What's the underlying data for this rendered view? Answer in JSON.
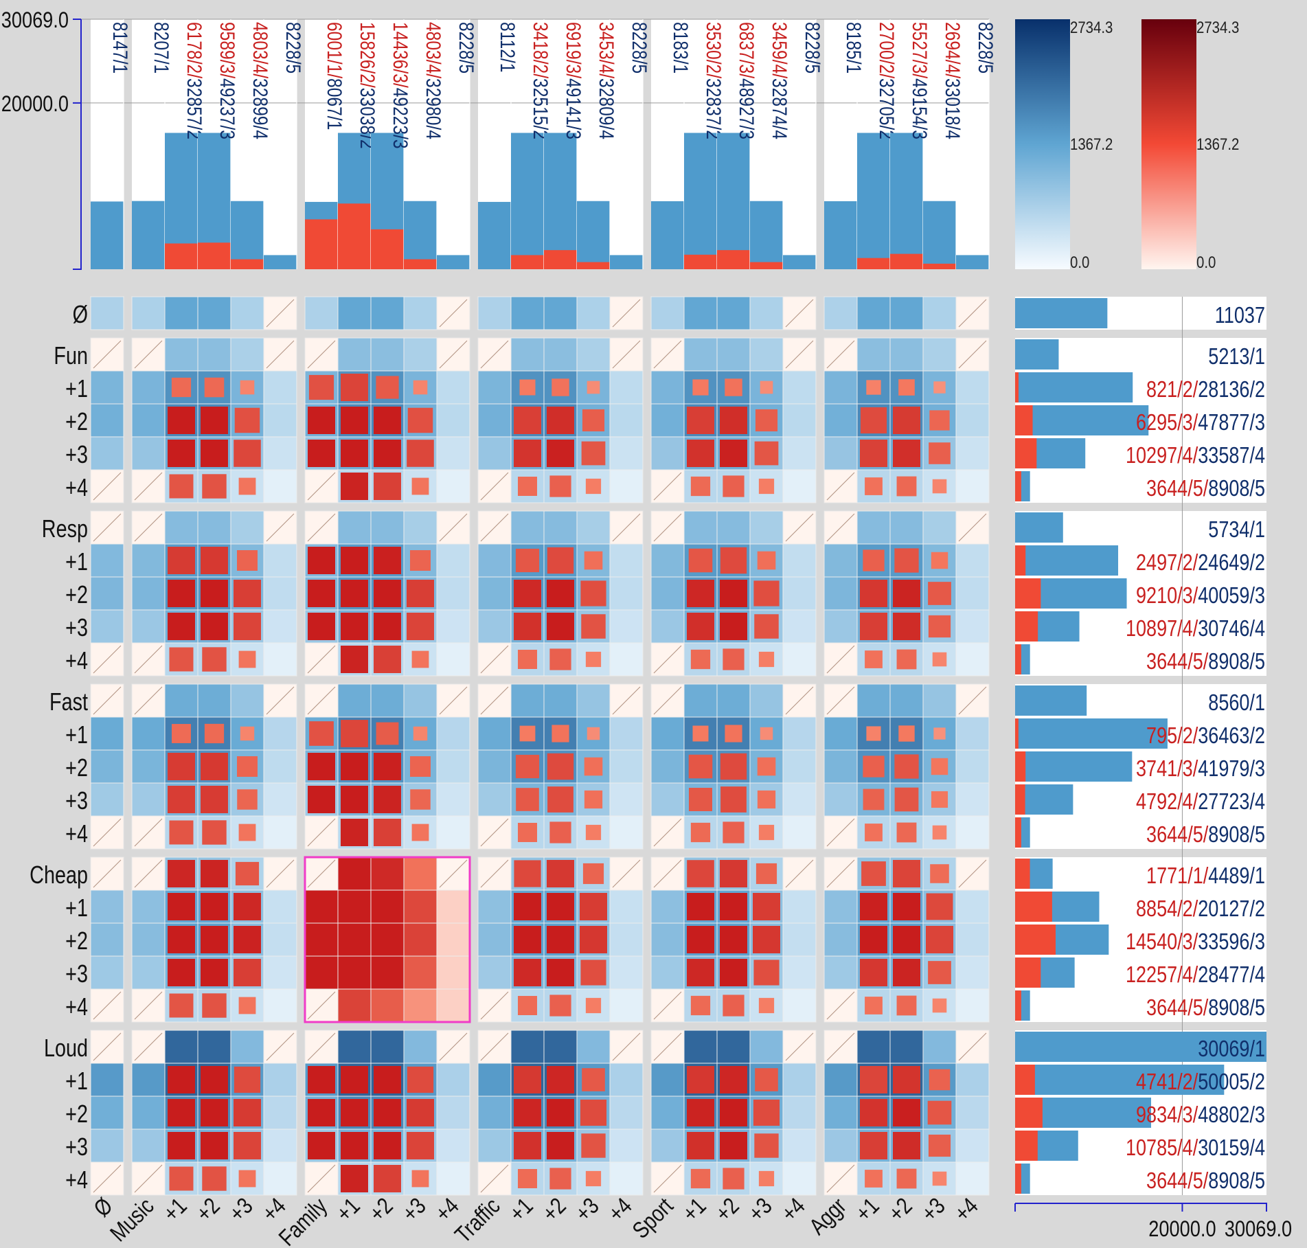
{
  "chart_data": {
    "type": "heatmap",
    "title": "",
    "colors": {
      "blue_dark": "#08306b",
      "blue_mid": "#4a98c9",
      "blue_light": "#f4f9fe",
      "red_dark": "#67000d",
      "red_mid": "#f04d38",
      "red_light": "#fff4ee",
      "bar_blue": "#4f9bcc",
      "bar_red": "#f04a35",
      "text_blue": "#102f6b",
      "text_red": "#c8201f",
      "highlight": "#f03cc8",
      "axis": "#2222cc"
    },
    "axis_max": "30069.0",
    "axis_mid": "20000.0",
    "axis_max_value": 30069,
    "axis_mid_value": 20000,
    "legend_blue": {
      "max": "2734.3",
      "mid": "1367.2",
      "min": "0.0"
    },
    "legend_red": {
      "max": "2734.3",
      "mid": "1367.2",
      "min": "0.0"
    },
    "column_groups": [
      {
        "label": "Ø",
        "cols": [
          {
            "label": "Ø",
            "blue": "8147/1",
            "red": "",
            "total": 8147,
            "red_value": 0
          }
        ]
      },
      {
        "label": "Music",
        "cols": [
          {
            "label": "Music",
            "blue": "8207/1",
            "red": "",
            "total": 8207,
            "red_value": 0
          },
          {
            "label": "+1",
            "blue": "32857/2",
            "red": "6178/2/",
            "total": 16400,
            "red_value": 3100
          },
          {
            "label": "+2",
            "blue": "49237/3",
            "red": "9589/3/",
            "total": 16400,
            "red_value": 3200
          },
          {
            "label": "+3",
            "blue": "32899/4",
            "red": "4803/4/",
            "total": 8200,
            "red_value": 1200
          },
          {
            "label": "+4",
            "blue": "8228/5",
            "red": "",
            "total": 1700,
            "red_value": 0
          }
        ]
      },
      {
        "label": "Family",
        "cols": [
          {
            "label": "Family",
            "blue": "8067/1",
            "red": "6001/1/",
            "total": 8100,
            "red_value": 6000
          },
          {
            "label": "+1",
            "blue": "33038/2",
            "red": "15826/2/",
            "total": 16400,
            "red_value": 7900
          },
          {
            "label": "+2",
            "blue": "49223/3",
            "red": "14436/3/",
            "total": 16400,
            "red_value": 4800
          },
          {
            "label": "+3",
            "blue": "32980/4",
            "red": "4803/4/",
            "total": 8200,
            "red_value": 1200
          },
          {
            "label": "+4",
            "blue": "8228/5",
            "red": "",
            "total": 1700,
            "red_value": 0
          }
        ]
      },
      {
        "label": "Traffic",
        "cols": [
          {
            "label": "Traffic",
            "blue": "8112/1",
            "red": "",
            "total": 8100,
            "red_value": 0
          },
          {
            "label": "+1",
            "blue": "32515/2",
            "red": "3418/2/",
            "total": 16400,
            "red_value": 1700
          },
          {
            "label": "+2",
            "blue": "49141/3",
            "red": "6919/3/",
            "total": 16400,
            "red_value": 2300
          },
          {
            "label": "+3",
            "blue": "32809/4",
            "red": "3453/4/",
            "total": 8200,
            "red_value": 860
          },
          {
            "label": "+4",
            "blue": "8228/5",
            "red": "",
            "total": 1700,
            "red_value": 0
          }
        ]
      },
      {
        "label": "Sport",
        "cols": [
          {
            "label": "Sport",
            "blue": "8183/1",
            "red": "",
            "total": 8183,
            "red_value": 0
          },
          {
            "label": "+1",
            "blue": "32837/2",
            "red": "3530/2/",
            "total": 16400,
            "red_value": 1750
          },
          {
            "label": "+2",
            "blue": "48927/3",
            "red": "6837/3/",
            "total": 16400,
            "red_value": 2300
          },
          {
            "label": "+3",
            "blue": "32874/4",
            "red": "3459/4/",
            "total": 8200,
            "red_value": 860
          },
          {
            "label": "+4",
            "blue": "8228/5",
            "red": "",
            "total": 1700,
            "red_value": 0
          }
        ]
      },
      {
        "label": "Aggr",
        "cols": [
          {
            "label": "Aggr",
            "blue": "8185/1",
            "red": "",
            "total": 8185,
            "red_value": 0
          },
          {
            "label": "+1",
            "blue": "32705/2",
            "red": "2700/2/",
            "total": 16400,
            "red_value": 1350
          },
          {
            "label": "+2",
            "blue": "49154/3",
            "red": "5527/3/",
            "total": 16400,
            "red_value": 1850
          },
          {
            "label": "+3",
            "blue": "33018/4",
            "red": "2694/4/",
            "total": 8200,
            "red_value": 670
          },
          {
            "label": "+4",
            "blue": "8228/5",
            "red": "",
            "total": 1700,
            "red_value": 0
          }
        ]
      }
    ],
    "row_groups": [
      {
        "label": "Ø",
        "rows": [
          {
            "label": "Ø",
            "red": "",
            "blue": "11037",
            "total": 11037,
            "red_value": 0
          }
        ]
      },
      {
        "label": "Fun",
        "rows": [
          {
            "label": "Fun",
            "red": "",
            "blue": "5213/1",
            "total": 5213,
            "red_value": 0
          },
          {
            "label": "+1",
            "red": "821/2/",
            "blue": "28136/2",
            "total": 14068,
            "red_value": 410
          },
          {
            "label": "+2",
            "red": "6295/3/",
            "blue": "47877/3",
            "total": 15959,
            "red_value": 2098
          },
          {
            "label": "+3",
            "red": "10297/4/",
            "blue": "33587/4",
            "total": 8397,
            "red_value": 2574
          },
          {
            "label": "+4",
            "red": "3644/5/",
            "blue": "8908/5",
            "total": 1782,
            "red_value": 729
          }
        ]
      },
      {
        "label": "Resp",
        "rows": [
          {
            "label": "Resp",
            "red": "",
            "blue": "5734/1",
            "total": 5734,
            "red_value": 0
          },
          {
            "label": "+1",
            "red": "2497/2/",
            "blue": "24649/2",
            "total": 12325,
            "red_value": 1249
          },
          {
            "label": "+2",
            "red": "9210/3/",
            "blue": "40059/3",
            "total": 13353,
            "red_value": 3070
          },
          {
            "label": "+3",
            "red": "10897/4/",
            "blue": "30746/4",
            "total": 7687,
            "red_value": 2724
          },
          {
            "label": "+4",
            "red": "3644/5/",
            "blue": "8908/5",
            "total": 1782,
            "red_value": 729
          }
        ]
      },
      {
        "label": "Fast",
        "rows": [
          {
            "label": "Fast",
            "red": "",
            "blue": "8560/1",
            "total": 8560,
            "red_value": 0
          },
          {
            "label": "+1",
            "red": "795/2/",
            "blue": "36463/2",
            "total": 18232,
            "red_value": 398
          },
          {
            "label": "+2",
            "red": "3741/3/",
            "blue": "41979/3",
            "total": 13993,
            "red_value": 1247
          },
          {
            "label": "+3",
            "red": "4792/4/",
            "blue": "27723/4",
            "total": 6931,
            "red_value": 1198
          },
          {
            "label": "+4",
            "red": "3644/5/",
            "blue": "8908/5",
            "total": 1782,
            "red_value": 729
          }
        ]
      },
      {
        "label": "Cheap",
        "rows": [
          {
            "label": "Cheap",
            "red": "1771/1/",
            "blue": "4489/1",
            "total": 4489,
            "red_value": 1771
          },
          {
            "label": "+1",
            "red": "8854/2/",
            "blue": "20127/2",
            "total": 10064,
            "red_value": 4427
          },
          {
            "label": "+2",
            "red": "14540/3/",
            "blue": "33596/3",
            "total": 11199,
            "red_value": 4847
          },
          {
            "label": "+3",
            "red": "12257/4/",
            "blue": "28477/4",
            "total": 7119,
            "red_value": 3064
          },
          {
            "label": "+4",
            "red": "3644/5/",
            "blue": "8908/5",
            "total": 1782,
            "red_value": 729
          }
        ]
      },
      {
        "label": "Loud",
        "rows": [
          {
            "label": "Loud",
            "red": "",
            "blue": "30069/1",
            "total": 30069,
            "red_value": 0
          },
          {
            "label": "+1",
            "red": "4741/2/",
            "blue": "50005/2",
            "total": 25003,
            "red_value": 2371
          },
          {
            "label": "+2",
            "red": "9834/3/",
            "blue": "48802/3",
            "total": 16267,
            "red_value": 3278
          },
          {
            "label": "+3",
            "red": "10785/4/",
            "blue": "30159/4",
            "total": 7540,
            "red_value": 2696
          },
          {
            "label": "+4",
            "red": "3644/5/",
            "blue": "8908/5",
            "total": 1782,
            "red_value": 729
          }
        ]
      }
    ],
    "highlight": {
      "row_group": "Cheap",
      "col_group": "Family"
    }
  }
}
